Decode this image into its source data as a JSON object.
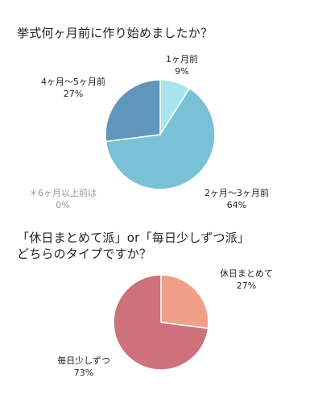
{
  "chart_data": [
    {
      "type": "pie",
      "title": "挙式何ヶ月前に作り始めましたか？",
      "slices": [
        {
          "label": "1ヶ月前",
          "value": 9,
          "value_label": "9%",
          "color": "#a8e6ef"
        },
        {
          "label": "2ヶ月〜3ヶ月前",
          "value": 64,
          "value_label": "64%",
          "color": "#79c2d6"
        },
        {
          "label": "＊6ヶ月以上前は",
          "value": 0,
          "value_label": "0%",
          "color": "#cccccc"
        },
        {
          "label": "4ヶ月〜5ヶ月前",
          "value": 27,
          "value_label": "27%",
          "color": "#6196bb"
        }
      ]
    },
    {
      "type": "pie",
      "title": [
        "「休日まとめて派」or「毎日少しずつ派」",
        "どちらのタイプですか？"
      ],
      "slices": [
        {
          "label": "休日まとめて",
          "value": 27,
          "value_label": "27%",
          "color": "#f0a08a"
        },
        {
          "label": "毎日少しずつ",
          "value": 73,
          "value_label": "73%",
          "color": "#cd717c"
        }
      ]
    }
  ]
}
